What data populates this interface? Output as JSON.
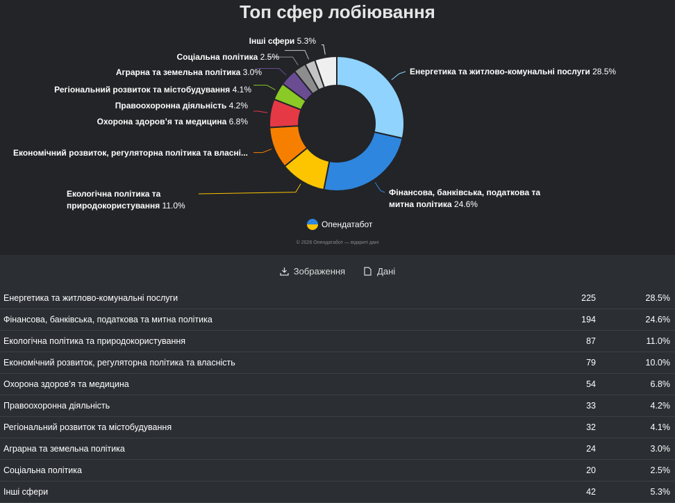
{
  "chart_data": {
    "type": "pie",
    "title": "Топ сфер лобіювання",
    "categories": [
      "Енергетика та житлово-комунальні послуги",
      "Фінансова, банківська, податкова та митна політика",
      "Екологічна політика та природокористування",
      "Економічний розвиток, регуляторна політика та власні...",
      "Охорона здоров’я та медицина",
      "Правоохоронна діяльність",
      "Регіональний розвиток та містобудування",
      "Аграрна та земельна політика",
      "Соціальна політика",
      "Інші сфери"
    ],
    "values": [
      28.5,
      24.6,
      11.0,
      10.0,
      6.8,
      4.2,
      4.1,
      3.0,
      2.5,
      5.3
    ],
    "value_labels": [
      "28.5%",
      "24.6%",
      "11.0%",
      null,
      "6.8%",
      "4.2%",
      "4.1%",
      "3.0%",
      "2.5%",
      "5.3%"
    ],
    "colors": [
      "#8fd3fe",
      "#2e86de",
      "#fdc500",
      "#f77f00",
      "#e63946",
      "#8ac926",
      "#6a4c93",
      "#8d8d8d",
      "#c4c4c4",
      "#efefef"
    ],
    "donut": true
  },
  "brand": "Опендатабот",
  "footer": "© 2026 Опендатабот — відкриті дані",
  "buttons": [
    "Зображення",
    "Дані"
  ],
  "table": {
    "rows": [
      [
        "Енергетика та житлово-комунальні послуги",
        225,
        "28.5%"
      ],
      [
        "Фінансова, банківська, податкова та митна політика",
        194,
        "24.6%"
      ],
      [
        "Екологічна політика та природокористування",
        87,
        "11.0%"
      ],
      [
        "Економічний розвиток, регуляторна політика та власність",
        79,
        "10.0%"
      ],
      [
        "Охорона здоров’я та медицина",
        54,
        "6.8%"
      ],
      [
        "Правоохоронна діяльність",
        33,
        "4.2%"
      ],
      [
        "Регіональний розвиток та містобудування",
        32,
        "4.1%"
      ],
      [
        "Аграрна та земельна політика",
        24,
        "3.0%"
      ],
      [
        "Соціальна політика",
        20,
        "2.5%"
      ],
      [
        "Інші сфери",
        42,
        "5.3%"
      ]
    ]
  }
}
